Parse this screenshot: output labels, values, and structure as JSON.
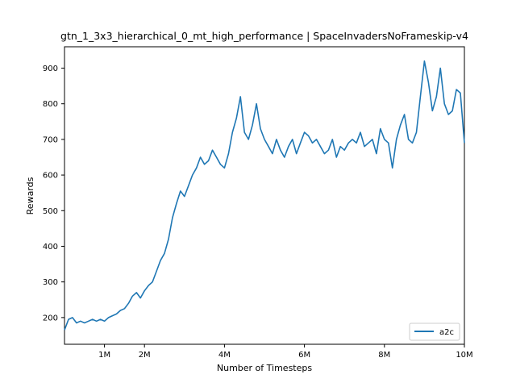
{
  "chart_data": {
    "type": "line",
    "title": "gtn_1_3x3_hierarchical_0_mt_high_performance | SpaceInvadersNoFrameskip-v4",
    "xlabel": "Number of Timesteps",
    "ylabel": "Rewards",
    "xlim": [
      0,
      10000000
    ],
    "ylim": [
      125,
      960
    ],
    "x_ticks": [
      1000000,
      2000000,
      4000000,
      6000000,
      8000000,
      10000000
    ],
    "x_tick_labels": [
      "1M",
      "2M",
      "4M",
      "6M",
      "8M",
      "10M"
    ],
    "y_ticks": [
      200,
      300,
      400,
      500,
      600,
      700,
      800,
      900
    ],
    "y_tick_labels": [
      "200",
      "300",
      "400",
      "500",
      "600",
      "700",
      "800",
      "900"
    ],
    "grid": false,
    "legend_position": "bottom-right",
    "series": [
      {
        "name": "a2c",
        "color": "#1f77b4",
        "x": [
          0,
          100000,
          200000,
          300000,
          400000,
          500000,
          600000,
          700000,
          800000,
          900000,
          1000000,
          1100000,
          1200000,
          1300000,
          1400000,
          1500000,
          1600000,
          1700000,
          1800000,
          1900000,
          2000000,
          2100000,
          2200000,
          2300000,
          2400000,
          2500000,
          2600000,
          2700000,
          2800000,
          2900000,
          3000000,
          3100000,
          3200000,
          3300000,
          3400000,
          3500000,
          3600000,
          3700000,
          3800000,
          3900000,
          4000000,
          4100000,
          4200000,
          4300000,
          4400000,
          4500000,
          4600000,
          4700000,
          4800000,
          4900000,
          5000000,
          5100000,
          5200000,
          5300000,
          5400000,
          5500000,
          5600000,
          5700000,
          5800000,
          5900000,
          6000000,
          6100000,
          6200000,
          6300000,
          6400000,
          6500000,
          6600000,
          6700000,
          6800000,
          6900000,
          7000000,
          7100000,
          7200000,
          7300000,
          7400000,
          7500000,
          7600000,
          7700000,
          7800000,
          7900000,
          8000000,
          8100000,
          8200000,
          8300000,
          8400000,
          8500000,
          8600000,
          8700000,
          8800000,
          8900000,
          9000000,
          9100000,
          9200000,
          9300000,
          9400000,
          9500000,
          9600000,
          9700000,
          9800000,
          9900000,
          10000000
        ],
        "y": [
          165,
          195,
          200,
          185,
          190,
          185,
          190,
          195,
          190,
          195,
          190,
          200,
          205,
          210,
          220,
          225,
          240,
          260,
          270,
          255,
          275,
          290,
          300,
          330,
          360,
          380,
          420,
          480,
          520,
          555,
          540,
          570,
          600,
          620,
          650,
          630,
          640,
          670,
          650,
          630,
          620,
          660,
          720,
          760,
          820,
          720,
          700,
          740,
          800,
          730,
          700,
          680,
          660,
          700,
          670,
          650,
          680,
          700,
          660,
          690,
          720,
          710,
          690,
          700,
          680,
          660,
          670,
          700,
          650,
          680,
          670,
          690,
          700,
          690,
          720,
          680,
          690,
          700,
          660,
          730,
          700,
          690,
          620,
          700,
          740,
          770,
          700,
          690,
          720,
          820,
          920,
          860,
          780,
          820,
          900,
          800,
          770,
          780,
          840,
          830,
          690
        ]
      }
    ]
  }
}
